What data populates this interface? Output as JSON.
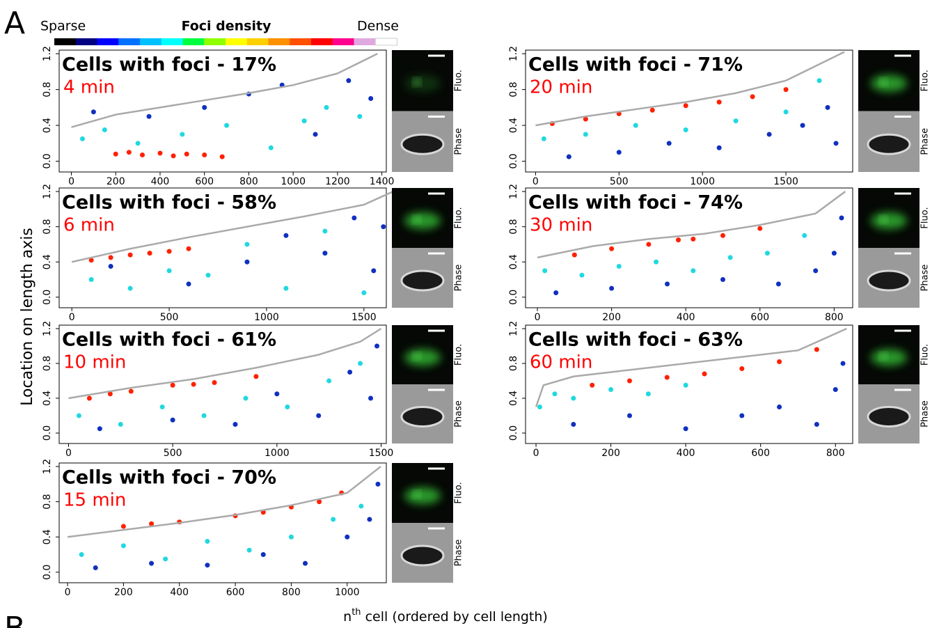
{
  "figure": {
    "panel_letter": "A",
    "next_letter": "B",
    "y_label": "Location on length axis",
    "x_label": [
      "n",
      "th",
      " cell (ordered by cell length)"
    ]
  },
  "legend": {
    "low": "Sparse",
    "title": "Foci density",
    "high": "Dense",
    "colors": [
      "#000000",
      "#000080",
      "#0000ff",
      "#0070ff",
      "#00c0ff",
      "#00ffff",
      "#00ff40",
      "#90ff00",
      "#ffff00",
      "#ffd000",
      "#ff9000",
      "#ff5000",
      "#ff0000",
      "#ff0090",
      "#e0a8e0",
      "#ffffff"
    ]
  },
  "chart_data": [
    {
      "type": "scatter",
      "title": "Cells with foci - 17%",
      "subtitle": "4 min",
      "image_labels": [
        "Fluo.",
        "Phase"
      ],
      "xlim": [
        -55,
        1420
      ],
      "xticks": [
        0,
        200,
        400,
        600,
        800,
        1000,
        1200,
        1400
      ],
      "ylim": [
        -0.12,
        1.24
      ],
      "yticks": [
        {
          "value": 0,
          "label": "0.0"
        },
        0.4,
        0.8,
        1.2
      ],
      "boundary": {
        "color": "#aaaaaa",
        "x": [
          0,
          200,
          400,
          600,
          800,
          1000,
          1200,
          1380
        ],
        "y": [
          0.38,
          0.52,
          0.6,
          0.68,
          0.76,
          0.85,
          0.98,
          1.2
        ]
      },
      "series": [
        {
          "color": "#1030c0",
          "x": [
            100,
            350,
            600,
            800,
            950,
            1100,
            1250,
            1350
          ],
          "y": [
            0.55,
            0.5,
            0.6,
            0.75,
            0.85,
            0.3,
            0.9,
            0.7
          ]
        },
        {
          "color": "#20d8e0",
          "x": [
            50,
            150,
            300,
            500,
            700,
            900,
            1050,
            1150,
            1300
          ],
          "y": [
            0.25,
            0.35,
            0.2,
            0.3,
            0.4,
            0.15,
            0.45,
            0.6,
            0.5
          ]
        },
        {
          "color": "#ff2000",
          "x": [
            200,
            260,
            320,
            400,
            460,
            520,
            600,
            680
          ],
          "y": [
            0.08,
            0.1,
            0.07,
            0.09,
            0.06,
            0.08,
            0.07,
            0.05
          ]
        }
      ]
    },
    {
      "type": "scatter",
      "title": "Cells with foci - 58%",
      "subtitle": "6 min",
      "image_labels": [
        "Fluo.",
        "Phase"
      ],
      "xlim": [
        -65,
        1615
      ],
      "xticks": [
        0,
        500,
        1000,
        1500
      ],
      "ylim": [
        -0.12,
        1.24
      ],
      "yticks": [
        {
          "value": 0,
          "label": "0.0"
        },
        0.4,
        0.8,
        1.2
      ],
      "boundary": {
        "color": "#aaaaaa",
        "x": [
          0,
          300,
          600,
          900,
          1200,
          1500,
          1650
        ],
        "y": [
          0.4,
          0.55,
          0.68,
          0.8,
          0.92,
          1.05,
          1.2
        ]
      },
      "series": [
        {
          "color": "#1030c0",
          "x": [
            200,
            600,
            900,
            1100,
            1300,
            1450,
            1550,
            1600
          ],
          "y": [
            0.35,
            0.15,
            0.4,
            0.7,
            0.5,
            0.9,
            0.3,
            0.8
          ]
        },
        {
          "color": "#20d8e0",
          "x": [
            100,
            300,
            500,
            700,
            900,
            1100,
            1300,
            1500
          ],
          "y": [
            0.2,
            0.1,
            0.3,
            0.25,
            0.6,
            0.1,
            0.75,
            0.05
          ]
        },
        {
          "color": "#ff2000",
          "x": [
            100,
            200,
            300,
            400,
            500,
            600
          ],
          "y": [
            0.42,
            0.45,
            0.48,
            0.5,
            0.52,
            0.55
          ]
        }
      ]
    },
    {
      "type": "scatter",
      "title": "Cells with foci - 61%",
      "subtitle": "10 min",
      "image_labels": [
        "Fluo.",
        "Phase"
      ],
      "xlim": [
        -45,
        1525
      ],
      "xticks": [
        0,
        500,
        1000,
        1500
      ],
      "ylim": [
        -0.12,
        1.24
      ],
      "yticks": [
        {
          "value": 0,
          "label": "0.0"
        },
        0.4,
        0.8,
        1.2
      ],
      "boundary": {
        "color": "#aaaaaa",
        "x": [
          0,
          300,
          600,
          900,
          1200,
          1400,
          1500
        ],
        "y": [
          0.4,
          0.52,
          0.62,
          0.75,
          0.9,
          1.05,
          1.2
        ]
      },
      "series": [
        {
          "color": "#1030c0",
          "x": [
            150,
            500,
            800,
            1000,
            1200,
            1350,
            1450,
            1480
          ],
          "y": [
            0.05,
            0.15,
            0.1,
            0.45,
            0.2,
            0.7,
            0.4,
            1.0
          ]
        },
        {
          "color": "#20d8e0",
          "x": [
            50,
            250,
            450,
            650,
            850,
            1050,
            1250,
            1400
          ],
          "y": [
            0.2,
            0.1,
            0.3,
            0.2,
            0.4,
            0.3,
            0.6,
            0.8
          ]
        },
        {
          "color": "#ff2000",
          "x": [
            100,
            200,
            300,
            500,
            600,
            700,
            900
          ],
          "y": [
            0.4,
            0.45,
            0.48,
            0.55,
            0.56,
            0.58,
            0.65
          ]
        }
      ]
    },
    {
      "type": "scatter",
      "title": "Cells with foci - 70%",
      "subtitle": "15 min",
      "image_labels": [
        "Fluo.",
        "Phase"
      ],
      "xlim": [
        -30,
        1140
      ],
      "xticks": [
        0,
        200,
        400,
        600,
        800,
        1000
      ],
      "ylim": [
        -0.12,
        1.24
      ],
      "yticks": [
        {
          "value": 0,
          "label": "0.0"
        },
        0.4,
        0.8,
        1.2
      ],
      "boundary": {
        "color": "#aaaaaa",
        "x": [
          0,
          200,
          400,
          600,
          800,
          1000,
          1120
        ],
        "y": [
          0.4,
          0.48,
          0.56,
          0.65,
          0.76,
          0.9,
          1.2
        ]
      },
      "series": [
        {
          "color": "#1030c0",
          "x": [
            100,
            300,
            500,
            700,
            850,
            1000,
            1080,
            1110
          ],
          "y": [
            0.05,
            0.1,
            0.08,
            0.2,
            0.1,
            0.4,
            0.6,
            1.0
          ]
        },
        {
          "color": "#20d8e0",
          "x": [
            50,
            200,
            350,
            500,
            650,
            800,
            950,
            1050
          ],
          "y": [
            0.2,
            0.3,
            0.15,
            0.35,
            0.25,
            0.4,
            0.6,
            0.75
          ]
        },
        {
          "color": "#ff2000",
          "x": [
            200,
            300,
            400,
            600,
            700,
            800,
            900,
            980
          ],
          "y": [
            0.52,
            0.55,
            0.57,
            0.64,
            0.68,
            0.74,
            0.8,
            0.9
          ]
        }
      ]
    },
    {
      "type": "scatter",
      "title": "Cells with foci - 71%",
      "subtitle": "20 min",
      "image_labels": [
        "Fluo.",
        "Phase"
      ],
      "xlim": [
        -60,
        1900
      ],
      "xticks": [
        0,
        500,
        1000,
        1500
      ],
      "ylim": [
        -0.12,
        1.24
      ],
      "yticks": [
        {
          "value": 0,
          "label": "0.0"
        },
        0.4,
        0.8,
        1.2
      ],
      "boundary": {
        "color": "#aaaaaa",
        "x": [
          0,
          300,
          600,
          900,
          1200,
          1500,
          1850
        ],
        "y": [
          0.4,
          0.5,
          0.58,
          0.66,
          0.76,
          0.9,
          1.22
        ]
      },
      "series": [
        {
          "color": "#1030c0",
          "x": [
            200,
            500,
            800,
            1100,
            1400,
            1600,
            1750,
            1800
          ],
          "y": [
            0.05,
            0.1,
            0.2,
            0.15,
            0.3,
            0.4,
            0.6,
            0.2
          ]
        },
        {
          "color": "#20d8e0",
          "x": [
            50,
            300,
            600,
            900,
            1200,
            1500,
            1700
          ],
          "y": [
            0.25,
            0.3,
            0.4,
            0.35,
            0.45,
            0.55,
            0.9
          ]
        },
        {
          "color": "#ff2000",
          "x": [
            100,
            300,
            500,
            700,
            900,
            1100,
            1300,
            1500
          ],
          "y": [
            0.42,
            0.47,
            0.53,
            0.57,
            0.62,
            0.66,
            0.72,
            0.8
          ]
        }
      ]
    },
    {
      "type": "scatter",
      "title": "Cells with foci - 74%",
      "subtitle": "30 min",
      "image_labels": [
        "Fluo.",
        "Phase"
      ],
      "xlim": [
        -32,
        850
      ],
      "xticks": [
        0,
        200,
        400,
        600,
        800
      ],
      "ylim": [
        -0.12,
        1.24
      ],
      "yticks": [
        {
          "value": 0,
          "label": "0.0"
        },
        0.4,
        0.8,
        1.2
      ],
      "boundary": {
        "color": "#aaaaaa",
        "x": [
          0,
          150,
          300,
          450,
          600,
          750,
          830
        ],
        "y": [
          0.45,
          0.58,
          0.66,
          0.72,
          0.82,
          0.95,
          1.2
        ]
      },
      "series": [
        {
          "color": "#1030c0",
          "x": [
            50,
            200,
            350,
            500,
            650,
            750,
            800,
            820
          ],
          "y": [
            0.05,
            0.1,
            0.15,
            0.2,
            0.15,
            0.3,
            0.5,
            0.9
          ]
        },
        {
          "color": "#20d8e0",
          "x": [
            20,
            120,
            220,
            320,
            420,
            520,
            620,
            720
          ],
          "y": [
            0.3,
            0.25,
            0.35,
            0.4,
            0.3,
            0.45,
            0.5,
            0.7
          ]
        },
        {
          "color": "#ff2000",
          "x": [
            100,
            200,
            300,
            380,
            420,
            500,
            600
          ],
          "y": [
            0.48,
            0.55,
            0.6,
            0.65,
            0.66,
            0.7,
            0.78
          ]
        }
      ]
    },
    {
      "type": "scatter",
      "title": "Cells with foci - 63%",
      "subtitle": "60 min",
      "image_labels": [
        "Fluo.",
        "Phase"
      ],
      "xlim": [
        -28,
        846
      ],
      "xticks": [
        0,
        200,
        400,
        600,
        800
      ],
      "ylim": [
        -0.12,
        1.24
      ],
      "yticks": [
        {
          "value": 0,
          "label": "0.0"
        },
        0.4,
        0.8,
        1.2
      ],
      "boundary": {
        "color": "#aaaaaa",
        "x": [
          0,
          20,
          100,
          300,
          500,
          700,
          830
        ],
        "y": [
          0.3,
          0.55,
          0.65,
          0.75,
          0.85,
          0.95,
          1.2
        ]
      },
      "series": [
        {
          "color": "#1030c0",
          "x": [
            100,
            250,
            400,
            550,
            650,
            750,
            800,
            820
          ],
          "y": [
            0.1,
            0.2,
            0.05,
            0.2,
            0.3,
            0.1,
            0.5,
            0.8
          ]
        },
        {
          "color": "#20d8e0",
          "x": [
            10,
            50,
            100,
            200,
            300,
            400
          ],
          "y": [
            0.3,
            0.45,
            0.4,
            0.5,
            0.45,
            0.55
          ]
        },
        {
          "color": "#ff2000",
          "x": [
            150,
            250,
            350,
            450,
            550,
            650,
            750
          ],
          "y": [
            0.55,
            0.6,
            0.64,
            0.68,
            0.74,
            0.82,
            0.96
          ]
        }
      ]
    }
  ]
}
